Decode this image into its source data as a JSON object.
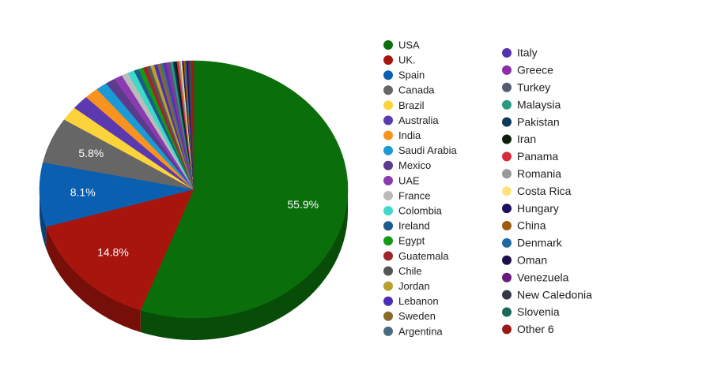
{
  "chart_data": {
    "type": "pie",
    "categories": [
      "USA",
      "UK.",
      "Spain",
      "Canada",
      "Brazil",
      "Australia",
      "India",
      "Saudi Arabia",
      "Mexico",
      "UAE",
      "France",
      "Colombia",
      "Ireland",
      "Egypt",
      "Guatemala",
      "Chile",
      "Jordan",
      "Lebanon",
      "Sweden",
      "Argentina",
      "Italy",
      "Greece",
      "Turkey",
      "Malaysia",
      "Pakistan",
      "Iran",
      "Panama",
      "Romania",
      "Costa Rica",
      "Hungary",
      "China",
      "Denmark",
      "Oman",
      "Venezuela",
      "New Caledonia",
      "Slovenia",
      "Other 6"
    ],
    "values": [
      55.9,
      14.8,
      8.1,
      5.8,
      1.8,
      1.8,
      1.5,
      1.2,
      1.0,
      0.9,
      0.7,
      0.7,
      0.5,
      0.5,
      0.4,
      0.4,
      0.4,
      0.35,
      0.3,
      0.3,
      0.3,
      0.25,
      0.25,
      0.25,
      0.2,
      0.2,
      0.2,
      0.2,
      0.15,
      0.15,
      0.15,
      0.15,
      0.15,
      0.1,
      0.1,
      0.1,
      0.3
    ],
    "value_labels": [
      "55.9%",
      "14.8%",
      "8.1%",
      "5.8%",
      null,
      null,
      null,
      null,
      null,
      null,
      null,
      null,
      null,
      null,
      null,
      null,
      null,
      null,
      null,
      null,
      null,
      null,
      null,
      null,
      null,
      null,
      null,
      null,
      null,
      null,
      null,
      null,
      null,
      null,
      null,
      null,
      null
    ],
    "colors": [
      "#0a6e0a",
      "#a8150d",
      "#0b5fb0",
      "#666666",
      "#fbd33a",
      "#5b39b0",
      "#f7931e",
      "#1b9ad6",
      "#5a3b8c",
      "#8a3bb0",
      "#bbbbbb",
      "#3fd9c9",
      "#1f5a8c",
      "#119b19",
      "#a1242b",
      "#555555",
      "#b8a030",
      "#4a2fb5",
      "#8a6a2a",
      "#4a6a80",
      "#5530b0",
      "#8a2fa8",
      "#555a75",
      "#2a9980",
      "#0e3a5a",
      "#0d200d",
      "#d62a3a",
      "#999999",
      "#fde37a",
      "#1a1060",
      "#a05a10",
      "#1e6aa0",
      "#20104a",
      "#6a1a7a",
      "#333844",
      "#1a6a5a",
      "#9a1a1a"
    ]
  }
}
